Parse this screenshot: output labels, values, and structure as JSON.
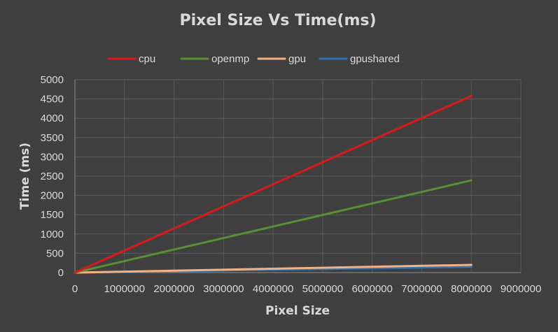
{
  "chart_data": {
    "type": "line",
    "title": "Pixel Size Vs Time(ms)",
    "xlabel": "Pixel Size",
    "ylabel": "Time (ms)",
    "xlim": [
      0,
      9000000
    ],
    "ylim": [
      0,
      5000
    ],
    "x_ticks": [
      0,
      1000000,
      2000000,
      3000000,
      4000000,
      5000000,
      6000000,
      7000000,
      8000000,
      9000000
    ],
    "y_ticks": [
      0,
      500,
      1000,
      1500,
      2000,
      2500,
      3000,
      3500,
      4000,
      4500,
      5000
    ],
    "grid": true,
    "legend_position": "top",
    "series": [
      {
        "name": "cpu",
        "color": "#d9191a",
        "points": [
          [
            0,
            0
          ],
          [
            8000000,
            4580
          ]
        ]
      },
      {
        "name": "openmp",
        "color": "#5a8f35",
        "points": [
          [
            0,
            0
          ],
          [
            8000000,
            2390
          ]
        ]
      },
      {
        "name": "gpu",
        "color": "#f4b183",
        "points": [
          [
            0,
            0
          ],
          [
            8000000,
            200
          ]
        ]
      },
      {
        "name": "gpushared",
        "color": "#2e75b6",
        "points": [
          [
            0,
            0
          ],
          [
            8000000,
            150
          ]
        ]
      }
    ]
  }
}
